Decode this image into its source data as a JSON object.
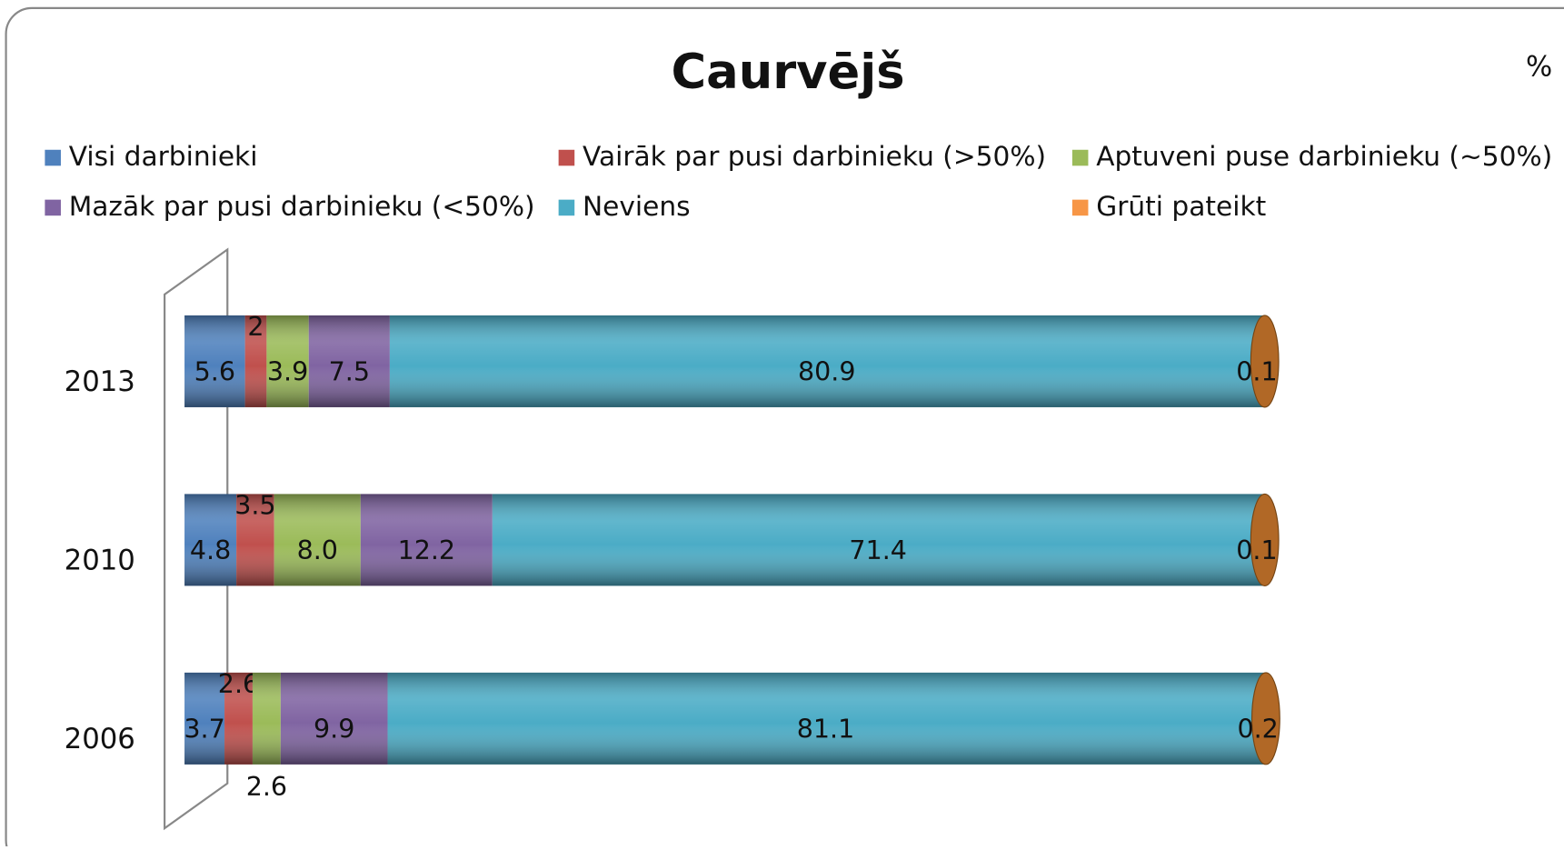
{
  "chart_data": {
    "type": "bar",
    "orientation": "horizontal",
    "stacked": true,
    "title": "Caurvējš",
    "unit": "%",
    "categories": [
      "2006",
      "2010",
      "2013"
    ],
    "xlim": [
      0,
      100
    ],
    "legend": "top",
    "series": [
      {
        "name": "Visi darbinieki",
        "color": "#4f81bd",
        "values": [
          3.7,
          4.8,
          5.6
        ]
      },
      {
        "name": "Vairāk par pusi darbinieku (>50%)",
        "color": "#c0504d",
        "values": [
          2.6,
          3.5,
          2
        ]
      },
      {
        "name": "Aptuveni puse darbinieku (~50%)",
        "color": "#9bbb59",
        "values": [
          2.6,
          8,
          3.9
        ],
        "value_labels": [
          "2.6",
          "8.0",
          "3.9"
        ]
      },
      {
        "name": "Mazāk par pusi darbinieku (<50%)",
        "color": "#8064a2",
        "values": [
          9.9,
          12.2,
          7.5
        ]
      },
      {
        "name": "Neviens",
        "color": "#4bacc6",
        "values": [
          81.1,
          71.4,
          80.9
        ]
      },
      {
        "name": "Grūti pateikt",
        "color": "#f79646",
        "values": [
          0.2,
          0.1,
          0.1
        ]
      }
    ]
  }
}
